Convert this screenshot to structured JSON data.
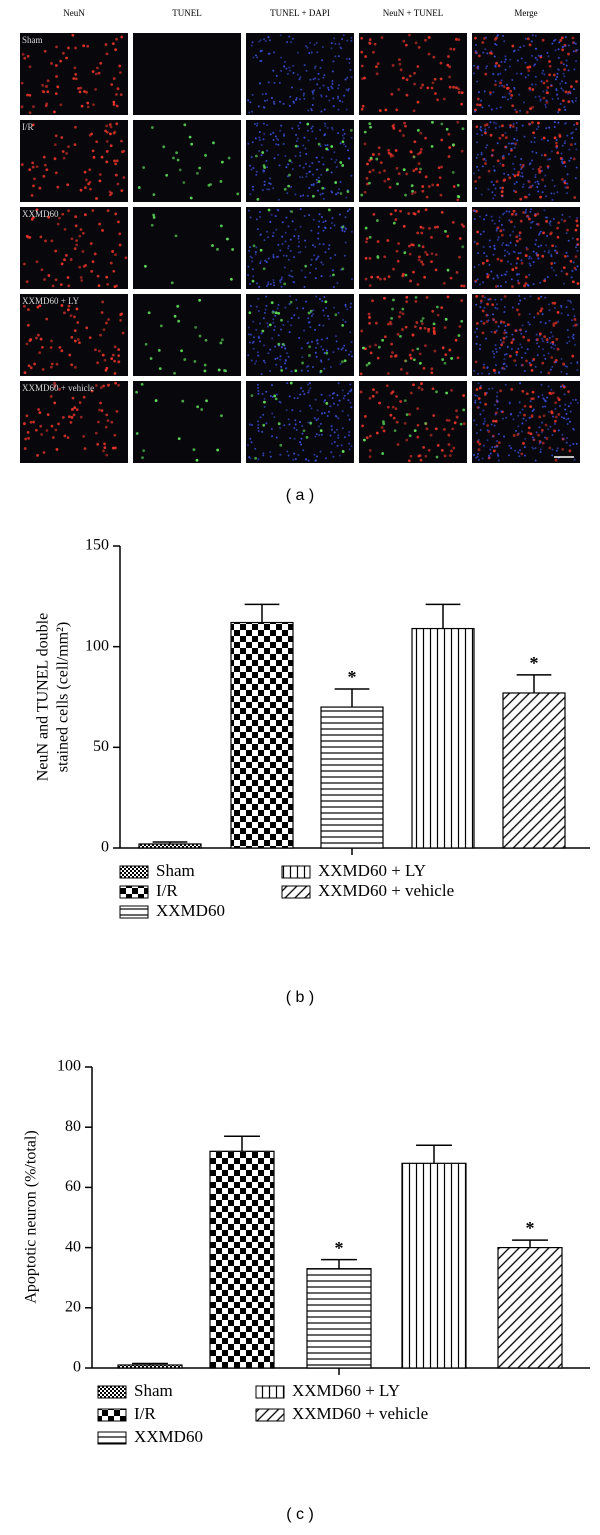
{
  "figure_a": {
    "column_headers": [
      "NeuN",
      "TUNEL",
      "TUNEL + DAPI",
      "NeuN + TUNEL",
      "Merge"
    ],
    "row_labels": [
      "Sham",
      "I/R",
      "XXMD60",
      "XXMD60 + LY",
      "XXMD60 + vehicle"
    ],
    "caption": "( a )"
  },
  "chart_data": [
    {
      "type": "bar",
      "caption": "( b )",
      "ylabel": [
        "NeuN and TUNEL double",
        "stained cells (cell/mm²)"
      ],
      "categories": [
        "Sham",
        "I/R",
        "XXMD60",
        "XXMD60 + LY",
        "XXMD60 + vehicle"
      ],
      "values": [
        2,
        112,
        70,
        109,
        77
      ],
      "errors": [
        1,
        9,
        9,
        12,
        9
      ],
      "patterns": [
        "dots",
        "checker",
        "hlines",
        "vlines",
        "diagonal"
      ],
      "annotations": [
        {
          "text": "*",
          "category": "XXMD60"
        },
        {
          "text": "*",
          "category": "XXMD60 + vehicle"
        }
      ],
      "ylim": [
        0,
        150
      ],
      "yticks": [
        0,
        50,
        100,
        150
      ]
    },
    {
      "type": "bar",
      "caption": "( c )",
      "ylabel": [
        "Apoptotic neuron (%/total)"
      ],
      "categories": [
        "Sham",
        "I/R",
        "XXMD60",
        "XXMD60 + LY",
        "XXMD60 + vehicle"
      ],
      "values": [
        1,
        72,
        33,
        68,
        40
      ],
      "errors": [
        0.5,
        5,
        3,
        6,
        2.5
      ],
      "patterns": [
        "dots",
        "checker",
        "hlines",
        "vlines",
        "diagonal"
      ],
      "annotations": [
        {
          "text": "*",
          "category": "XXMD60"
        },
        {
          "text": "*",
          "category": "XXMD60 + vehicle"
        }
      ],
      "ylim": [
        0,
        100
      ],
      "yticks": [
        0,
        20,
        40,
        60,
        80,
        100
      ]
    }
  ]
}
